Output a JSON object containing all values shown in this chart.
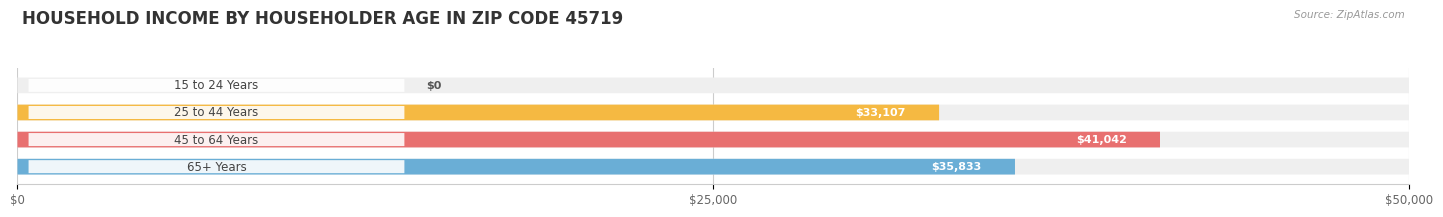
{
  "title": "HOUSEHOLD INCOME BY HOUSEHOLDER AGE IN ZIP CODE 45719",
  "source": "Source: ZipAtlas.com",
  "categories": [
    "15 to 24 Years",
    "25 to 44 Years",
    "45 to 64 Years",
    "65+ Years"
  ],
  "values": [
    0,
    33107,
    41042,
    35833
  ],
  "bar_colors": [
    "#f4a0b5",
    "#f5b942",
    "#e87070",
    "#6aaed6"
  ],
  "bar_bg_color": "#efefef",
  "label_texts": [
    "$0",
    "$33,107",
    "$41,042",
    "$35,833"
  ],
  "xlim": [
    0,
    50000
  ],
  "xticks": [
    0,
    25000,
    50000
  ],
  "xticklabels": [
    "$0",
    "$25,000",
    "$50,000"
  ],
  "background_color": "#ffffff",
  "title_fontsize": 12,
  "bar_height": 0.58,
  "figsize": [
    14.06,
    2.33
  ]
}
